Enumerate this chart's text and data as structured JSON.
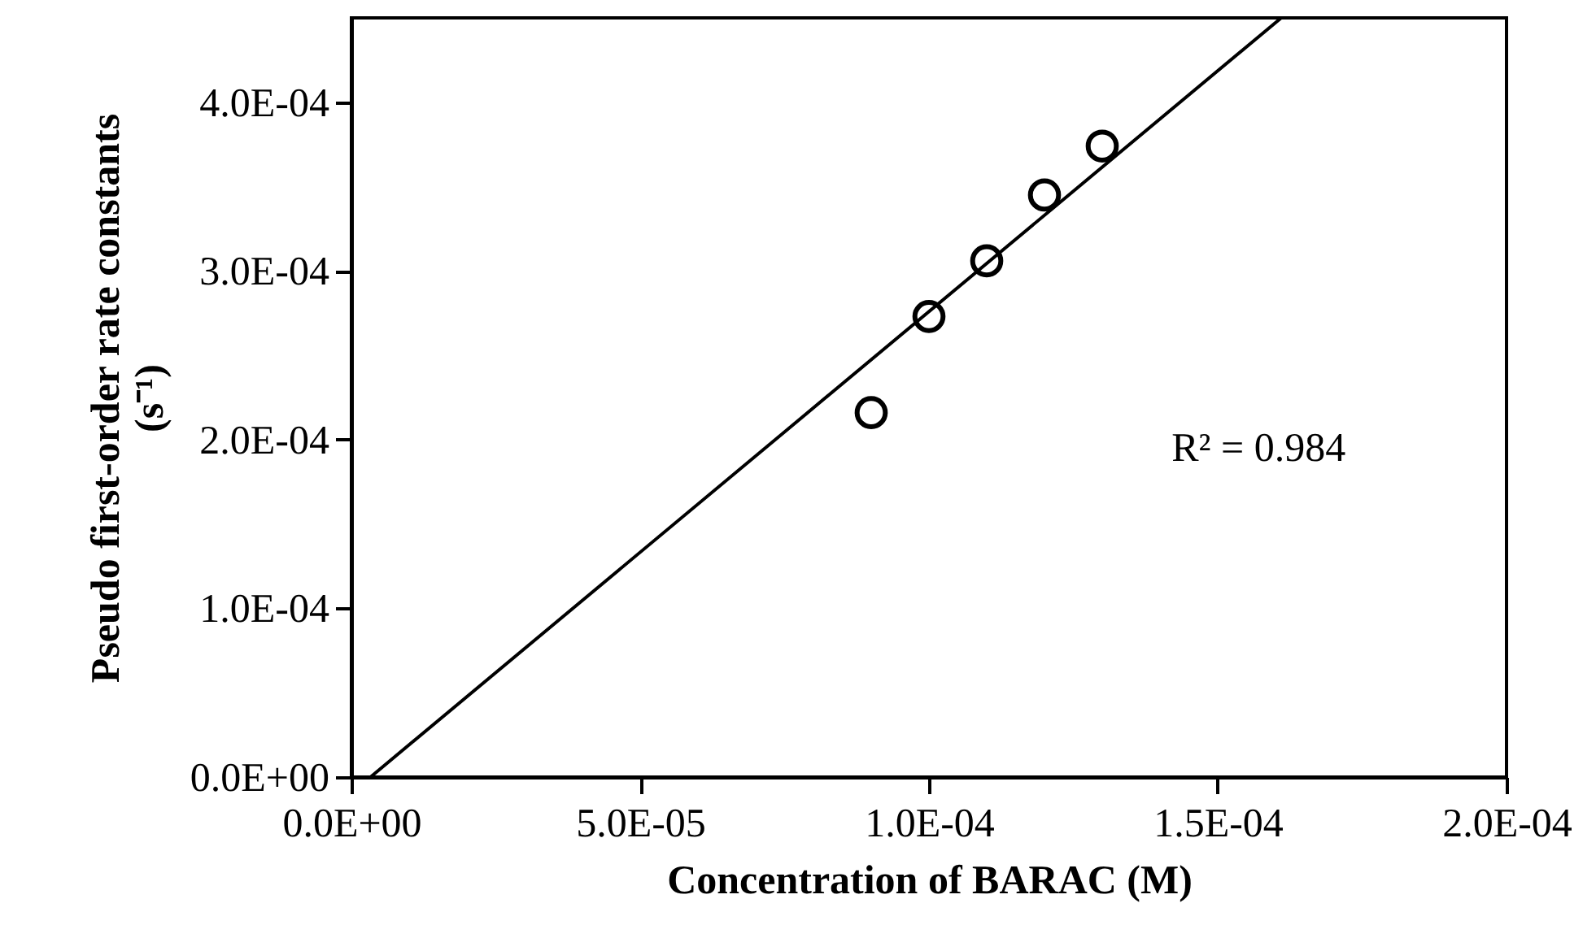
{
  "chart_data": {
    "type": "scatter",
    "xlabel": "Concentration of BARAC (M)",
    "ylabel": "Pseudo first-order rate constants (s⁻¹)",
    "xlim": [
      0,
      0.0002
    ],
    "xticks": [
      {
        "value": 0,
        "label": "0.0E+00"
      },
      {
        "value": 5e-05,
        "label": "5.0E-05"
      },
      {
        "value": 0.0001,
        "label": "1.0E-04"
      },
      {
        "value": 0.00015,
        "label": "1.5E-04"
      },
      {
        "value": 0.0002,
        "label": "2.0E-04"
      }
    ],
    "ylim": [
      0,
      0.00045
    ],
    "yticks": [
      {
        "value": 0,
        "label": "0.0E+00"
      },
      {
        "value": 0.0001,
        "label": "1.0E-04"
      },
      {
        "value": 0.0002,
        "label": "2.0E-04"
      },
      {
        "value": 0.0003,
        "label": "3.0E-04"
      },
      {
        "value": 0.0004,
        "label": "4.0E-04"
      }
    ],
    "grid": false,
    "series": [
      {
        "marker": "circle",
        "color": "#000000",
        "x": [
          9e-05,
          0.0001,
          0.00011,
          0.00012,
          0.00013
        ],
        "values": [
          0.000216,
          0.000273,
          0.000306,
          0.000345,
          0.000374
        ]
      },
      {
        "type": "line",
        "color": "#000000",
        "line_style": "solid",
        "x": [
          3.3e-06,
          0.000161
        ],
        "values": [
          0,
          0.00045
        ]
      }
    ],
    "annotations": [
      "R² = 0.984"
    ]
  }
}
